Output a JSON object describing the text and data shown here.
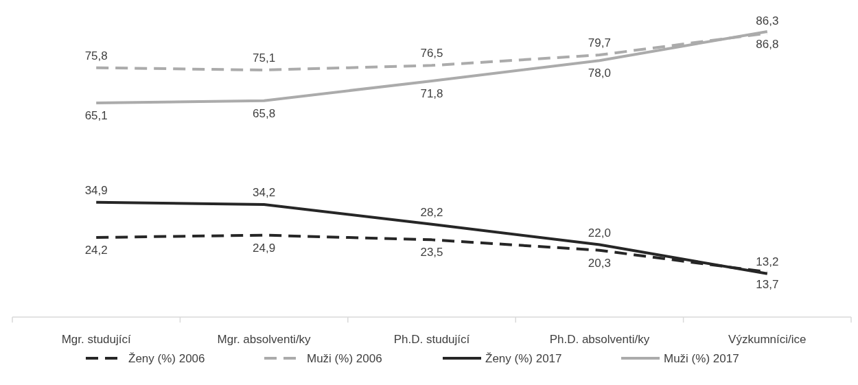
{
  "chart_data": {
    "type": "line",
    "categories": [
      "Mgr. studující",
      "Mgr. absolventi/ky",
      "Ph.D. studující",
      "Ph.D. absolventi/ky",
      "Výzkumníci/ice"
    ],
    "tick_labels": "x",
    "legend": "bottom",
    "marker": "none",
    "series": [
      {
        "name": "Ženy (%) 2006",
        "color": "#262626",
        "line_style": "dashed",
        "values": [
          24.2,
          24.9,
          23.5,
          20.3,
          13.7
        ],
        "value_labels": [
          "24,2",
          "24,9",
          "23,5",
          "20,3",
          "13,7"
        ]
      },
      {
        "name": "Muži (%) 2006",
        "color": "#ababab",
        "line_style": "dashed",
        "values": [
          75.8,
          75.1,
          76.5,
          79.7,
          86.3
        ],
        "value_labels": [
          "75,8",
          "75,1",
          "76,5",
          "79,7",
          "86,3"
        ]
      },
      {
        "name": "Ženy (%) 2017",
        "color": "#262626",
        "line_style": "solid",
        "values": [
          34.9,
          34.2,
          28.2,
          22.0,
          13.2
        ],
        "value_labels": [
          "34,9",
          "34,2",
          "28,2",
          "22,0",
          "13,2"
        ]
      },
      {
        "name": "Muži (%) 2017",
        "color": "#ababab",
        "line_style": "solid",
        "values": [
          65.1,
          65.8,
          71.8,
          78.0,
          86.8
        ],
        "value_labels": [
          "65,1",
          "65,8",
          "71,8",
          "78,0",
          "86,8"
        ]
      }
    ]
  }
}
